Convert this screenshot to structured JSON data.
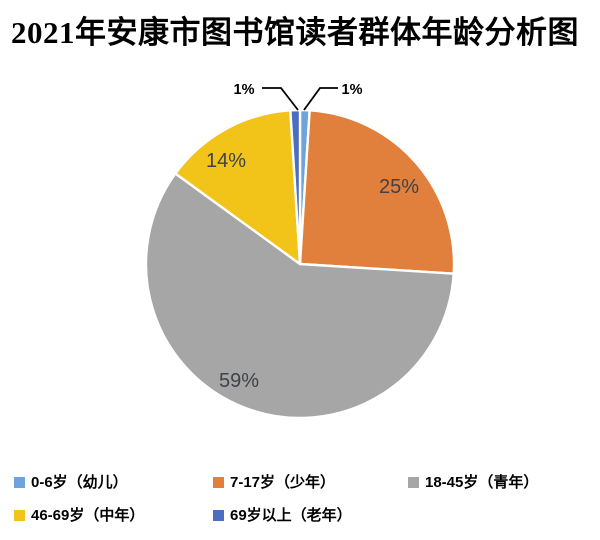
{
  "title": "2021年安康市图书馆读者群体年龄分析图",
  "chart_data": {
    "type": "pie",
    "title": "2021年安康市图书馆读者群体年龄分析图",
    "categories": [
      "0-6岁（幼儿）",
      "7-17岁（少年）",
      "18-45岁（青年）",
      "46-69岁（中年）",
      "69岁以上（老年）"
    ],
    "values": [
      1,
      25,
      59,
      14,
      1
    ],
    "percent_labels": [
      "1%",
      "25%",
      "59%",
      "14%",
      "1%"
    ],
    "colors": [
      "#6FA3DC",
      "#E0803C",
      "#A6A6A6",
      "#F2C318",
      "#4B6EC2"
    ],
    "slice_border_color": "#FFFFFF",
    "inner_label_color": "#3F4248",
    "outer_label_color": "#000000",
    "start": "12-oclock",
    "direction": "clockwise",
    "legend_position": "bottom",
    "grid": false
  },
  "legend": {
    "items": [
      {
        "label": "0-6岁（幼儿）",
        "color": "#6FA3DC"
      },
      {
        "label": "7-17岁（少年）",
        "color": "#E0803C"
      },
      {
        "label": "18-45岁（青年）",
        "color": "#A6A6A6"
      },
      {
        "label": "46-69岁（中年）",
        "color": "#F2C318"
      },
      {
        "label": "69岁以上（老年）",
        "color": "#4B6EC2"
      }
    ]
  }
}
